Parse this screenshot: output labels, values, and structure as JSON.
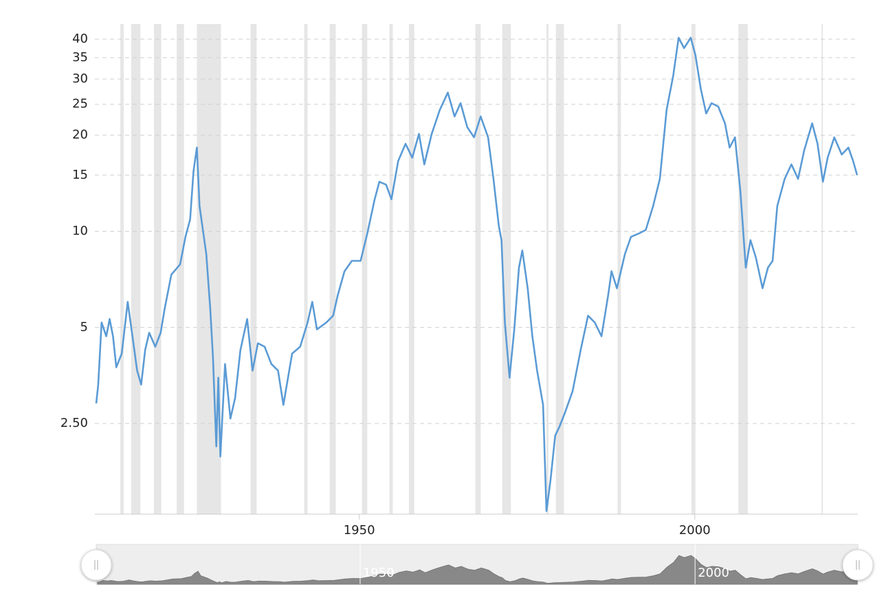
{
  "chart_data": {
    "type": "line",
    "log_scale": true,
    "grid": true,
    "xlim": [
      1910.6,
      2024.3
    ],
    "xticks": [
      1950,
      2000
    ],
    "ylim": [
      1.3,
      44.6
    ],
    "yticks": [
      {
        "value": 2.5,
        "label": "2.50"
      },
      5,
      10,
      15,
      20,
      25,
      30,
      35,
      40
    ],
    "recession_color": "#e6e6e6",
    "recessions": [
      [
        1914.4,
        1914.9
      ],
      [
        1916.0,
        1917.4
      ],
      [
        1919.4,
        1920.5
      ],
      [
        1922.8,
        1923.9
      ],
      [
        1925.8,
        1929.4
      ],
      [
        1933.8,
        1934.7
      ],
      [
        1941.8,
        1942.3
      ],
      [
        1945.6,
        1946.5
      ],
      [
        1950.4,
        1951.2
      ],
      [
        1954.5,
        1955.0
      ],
      [
        1957.4,
        1958.2
      ],
      [
        1967.3,
        1968.1
      ],
      [
        1971.3,
        1972.6
      ],
      [
        1977.9,
        1978.2
      ],
      [
        1979.3,
        1980.5
      ],
      [
        1988.5,
        1989.0
      ],
      [
        1999.5,
        2000.1
      ],
      [
        2006.5,
        2007.9
      ],
      [
        2018.9,
        2019.1
      ]
    ],
    "x": [
      1910.8,
      1911.1,
      1911.6,
      1912.3,
      1912.8,
      1913.3,
      1913.8,
      1914.6,
      1915.5,
      1916.2,
      1916.9,
      1917.5,
      1918.1,
      1918.7,
      1919.6,
      1920.4,
      1921.0,
      1922.0,
      1923.3,
      1924.1,
      1924.8,
      1925.3,
      1925.8,
      1926.2,
      1927.2,
      1927.8,
      1928.2,
      1928.7,
      1929.0,
      1929.3,
      1930.0,
      1930.8,
      1931.5,
      1932.3,
      1933.3,
      1934.1,
      1934.9,
      1935.9,
      1936.9,
      1937.9,
      1938.7,
      1940.0,
      1941.2,
      1942.3,
      1943.0,
      1943.7,
      1945.1,
      1946.1,
      1946.8,
      1947.8,
      1948.9,
      1950.2,
      1951.2,
      1952.3,
      1953.0,
      1954.0,
      1954.8,
      1955.8,
      1956.9,
      1957.9,
      1958.9,
      1959.7,
      1960.8,
      1962.0,
      1963.2,
      1964.2,
      1965.1,
      1966.1,
      1967.1,
      1968.1,
      1969.2,
      1970.0,
      1970.8,
      1971.2,
      1971.7,
      1972.4,
      1973.1,
      1973.8,
      1974.3,
      1975.1,
      1975.8,
      1976.5,
      1977.4,
      1977.9,
      1978.5,
      1979.2,
      1979.9,
      1980.7,
      1981.8,
      1983.0,
      1984.1,
      1985.1,
      1986.1,
      1987.1,
      1987.6,
      1988.4,
      1989.6,
      1990.5,
      1991.7,
      1992.7,
      1993.8,
      1994.8,
      1995.8,
      1996.8,
      1997.6,
      1998.4,
      1999.4,
      2000.1,
      2000.9,
      2001.7,
      2002.5,
      2003.5,
      2004.5,
      2005.2,
      2006.0,
      2006.8,
      2007.6,
      2008.3,
      2009.1,
      2010.1,
      2010.9,
      2011.6,
      2012.3,
      2013.4,
      2014.4,
      2015.4,
      2016.3,
      2017.5,
      2018.3,
      2019.1,
      2019.8,
      2020.8,
      2021.9,
      2022.9,
      2023.6,
      2024.2
    ],
    "series": [
      {
        "color": "#5b9bd5",
        "values": [
          2.89,
          3.31,
          5.18,
          4.69,
          5.31,
          4.69,
          3.75,
          4.14,
          6.01,
          4.69,
          3.66,
          3.31,
          4.25,
          4.81,
          4.35,
          4.81,
          5.71,
          7.32,
          7.88,
          9.61,
          10.9,
          15.4,
          18.3,
          12.0,
          8.49,
          5.71,
          4.04,
          2.12,
          3.48,
          1.97,
          3.84,
          2.59,
          3.0,
          4.25,
          5.31,
          3.66,
          4.46,
          4.35,
          3.84,
          3.66,
          2.86,
          4.14,
          4.35,
          5.18,
          6.01,
          4.93,
          5.18,
          5.44,
          6.31,
          7.5,
          8.08,
          8.08,
          9.85,
          12.6,
          14.3,
          14.0,
          12.6,
          16.6,
          18.8,
          17.0,
          20.2,
          16.2,
          20.2,
          24.0,
          27.2,
          22.9,
          25.2,
          21.2,
          19.7,
          22.9,
          19.7,
          14.6,
          10.4,
          9.38,
          5.18,
          3.48,
          4.93,
          7.69,
          8.71,
          6.63,
          4.69,
          3.66,
          2.86,
          1.33,
          1.66,
          2.29,
          2.46,
          2.72,
          3.16,
          4.25,
          5.44,
          5.18,
          4.69,
          6.31,
          7.5,
          6.63,
          8.49,
          9.61,
          9.85,
          10.1,
          12.0,
          14.6,
          24.0,
          30.8,
          40.4,
          37.5,
          40.4,
          35.7,
          27.9,
          23.4,
          25.2,
          24.6,
          21.8,
          18.3,
          19.7,
          13.3,
          7.69,
          9.38,
          8.29,
          6.63,
          7.69,
          8.08,
          12.0,
          14.6,
          16.2,
          14.6,
          17.9,
          21.8,
          18.8,
          14.3,
          17.0,
          19.7,
          17.4,
          18.3,
          16.6,
          15.0
        ]
      }
    ]
  }
}
